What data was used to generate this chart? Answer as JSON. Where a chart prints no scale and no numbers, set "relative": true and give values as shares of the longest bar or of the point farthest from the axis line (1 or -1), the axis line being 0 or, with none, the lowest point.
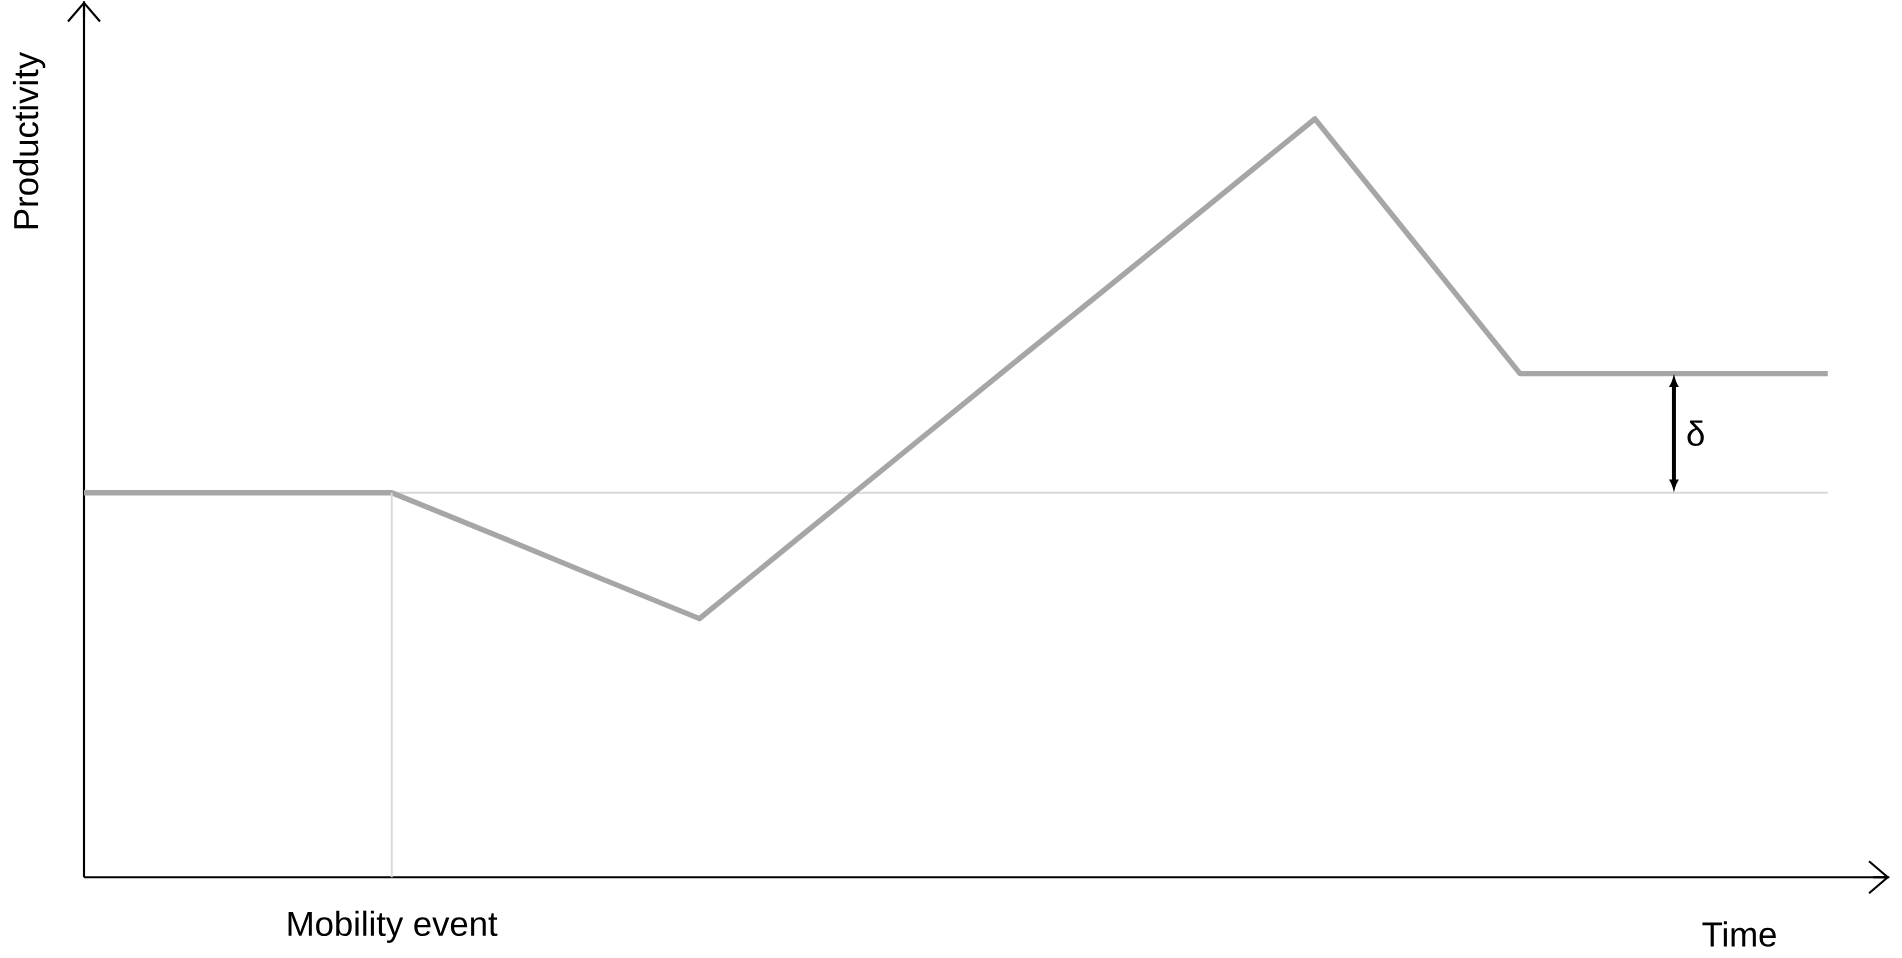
{
  "chart_data": {
    "type": "line",
    "relative": true,
    "xlabel": "Time",
    "ylabel": "Productivity",
    "categories": [
      null,
      null,
      null,
      null,
      null,
      null,
      null,
      null,
      null,
      null,
      null,
      null,
      null,
      null,
      null,
      null,
      null,
      null
    ],
    "values": [
      0.507,
      0.507,
      0.507,
      0.507,
      0.452,
      0.396,
      0.341,
      0.451,
      0.561,
      0.671,
      0.78,
      0.89,
      1,
      0.832,
      0.664,
      0.664,
      0.664,
      0.664
    ],
    "color": "#a6a6a6",
    "ref_lines": [
      {
        "axis": "y",
        "value": 0.507,
        "color": "#d9d9d9"
      }
    ],
    "annotations": [
      "δ",
      "Mobility event"
    ]
  }
}
